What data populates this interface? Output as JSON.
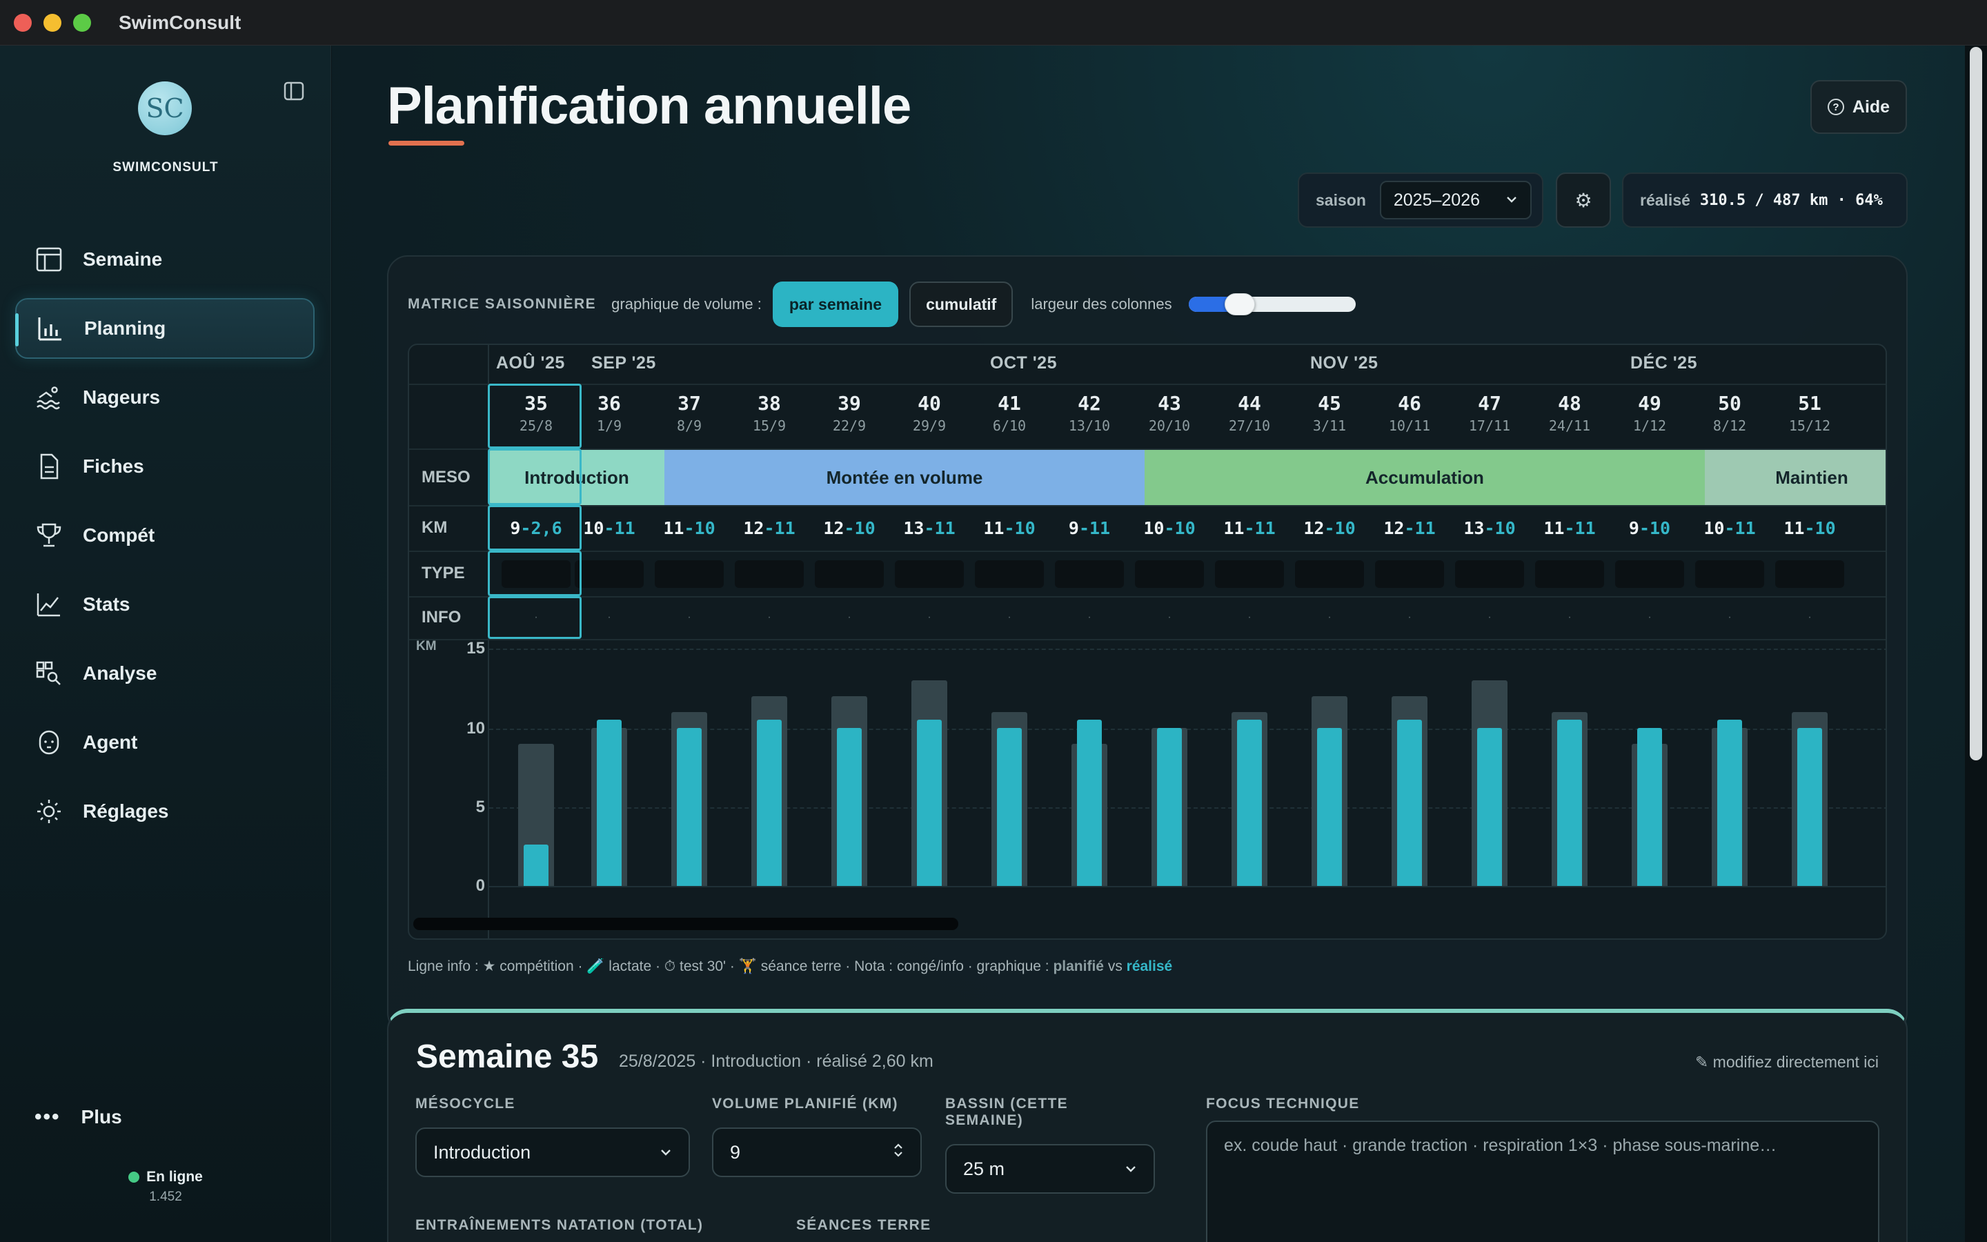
{
  "app": {
    "title": "SwimConsult"
  },
  "sidebar": {
    "logo_text": "SC",
    "brand": "SWIMCONSULT",
    "items": [
      {
        "label": "Semaine",
        "icon": "calendar-icon"
      },
      {
        "label": "Planning",
        "icon": "bar-chart-icon",
        "active": true
      },
      {
        "label": "Nageurs",
        "icon": "swimmer-icon"
      },
      {
        "label": "Fiches",
        "icon": "document-icon"
      },
      {
        "label": "Compét",
        "icon": "trophy-icon"
      },
      {
        "label": "Stats",
        "icon": "line-chart-icon"
      },
      {
        "label": "Analyse",
        "icon": "analyse-icon"
      },
      {
        "label": "Agent",
        "icon": "agent-icon"
      },
      {
        "label": "Réglages",
        "icon": "sun-gear-icon"
      }
    ],
    "more_label": "Plus",
    "status_label": "En ligne",
    "version": "1.452"
  },
  "header": {
    "title": "Planification annuelle",
    "help_label": "Aide",
    "season_label": "saison",
    "season_value": "2025–2026",
    "realise_label": "réalisé",
    "realise_value": "310.5 / 487 km · 64%"
  },
  "matrix": {
    "title": "MATRICE SAISONNIÈRE",
    "volume_label": "graphique de volume :",
    "btn_week": "par semaine",
    "btn_cumul": "cumulatif",
    "width_label": "largeur des colonnes",
    "column_width_fraction": 0.3,
    "row_labels": {
      "meso": "MESO",
      "km": "KM",
      "type": "TYPE",
      "info": "INFO"
    },
    "months": [
      {
        "label": "AOÛ '25"
      },
      {
        "label": "SEP '25"
      },
      {
        "label": "OCT '25"
      },
      {
        "label": "NOV '25"
      },
      {
        "label": "DÉC '25"
      }
    ],
    "weeks": [
      {
        "n": "35",
        "d": "25/8",
        "plan": "9",
        "real": "2,6"
      },
      {
        "n": "36",
        "d": "1/9",
        "plan": "10",
        "real": "11"
      },
      {
        "n": "37",
        "d": "8/9",
        "plan": "11",
        "real": "10"
      },
      {
        "n": "38",
        "d": "15/9",
        "plan": "12",
        "real": "11"
      },
      {
        "n": "39",
        "d": "22/9",
        "plan": "12",
        "real": "10"
      },
      {
        "n": "40",
        "d": "29/9",
        "plan": "13",
        "real": "11"
      },
      {
        "n": "41",
        "d": "6/10",
        "plan": "11",
        "real": "10"
      },
      {
        "n": "42",
        "d": "13/10",
        "plan": "9",
        "real": "11"
      },
      {
        "n": "43",
        "d": "20/10",
        "plan": "10",
        "real": "10"
      },
      {
        "n": "44",
        "d": "27/10",
        "plan": "11",
        "real": "11"
      },
      {
        "n": "45",
        "d": "3/11",
        "plan": "12",
        "real": "10"
      },
      {
        "n": "46",
        "d": "10/11",
        "plan": "12",
        "real": "11"
      },
      {
        "n": "47",
        "d": "17/11",
        "plan": "13",
        "real": "10"
      },
      {
        "n": "48",
        "d": "24/11",
        "plan": "11",
        "real": "11"
      },
      {
        "n": "49",
        "d": "1/12",
        "plan": "9",
        "real": "10"
      },
      {
        "n": "50",
        "d": "8/12",
        "plan": "10",
        "real": "11"
      },
      {
        "n": "51",
        "d": "15/12",
        "plan": "11",
        "real": "10"
      }
    ],
    "mesocycles": [
      {
        "label": "Introduction",
        "color": "#8ed8c4"
      },
      {
        "label": "Montée en volume",
        "color": "#7db0e6"
      },
      {
        "label": "Accumulation",
        "color": "#83c98c"
      },
      {
        "label": "Maintien",
        "color": "#9ec9b2"
      }
    ],
    "info_placeholder": "·",
    "legend": {
      "prefix": "Ligne info : ★ compétition · 🧪 lactate · ⏱ test 30' · 🏋 séance terre · Nota : congé/info · graphique : ",
      "planned": "planifié",
      "vs": " vs ",
      "done": "réalisé"
    }
  },
  "chart_data": {
    "type": "bar",
    "categories": [
      "35",
      "36",
      "37",
      "38",
      "39",
      "40",
      "41",
      "42",
      "43",
      "44",
      "45",
      "46",
      "47",
      "48",
      "49",
      "50",
      "51"
    ],
    "series": [
      {
        "name": "planifié",
        "values": [
          9,
          10,
          11,
          12,
          12,
          13,
          11,
          9,
          10,
          11,
          12,
          12,
          13,
          11,
          9,
          10,
          11
        ]
      },
      {
        "name": "réalisé",
        "values": [
          2.6,
          10.5,
          10,
          10.5,
          10,
          10.5,
          10,
          10.5,
          10,
          10.5,
          10,
          10.5,
          10,
          10.5,
          10,
          10.5,
          10
        ]
      }
    ],
    "ylabel": "KM",
    "ylim": [
      0,
      15
    ],
    "yticks": [
      "0",
      "5",
      "10",
      "15"
    ],
    "grid": true
  },
  "week_detail": {
    "title": "Semaine 35",
    "subtitle": "25/8/2025 · Introduction · réalisé 2,60 km",
    "edit_hint": "✎ modifiez directement ici",
    "meso_label": "MÉSOCYCLE",
    "meso_value": "Introduction",
    "volume_label": "VOLUME PLANIFIÉ (KM)",
    "volume_value": "9",
    "bassin_label": "BASSIN (CETTE SEMAINE)",
    "bassin_value": "25 m",
    "focus_label": "FOCUS TECHNIQUE",
    "focus_placeholder": "ex. coude haut · grande traction · respiration 1×3 · phase sous-marine…",
    "trainings_label": "ENTRAÎNEMENTS NATATION (TOTAL)",
    "terre_label": "SÉANCES TERRE"
  }
}
